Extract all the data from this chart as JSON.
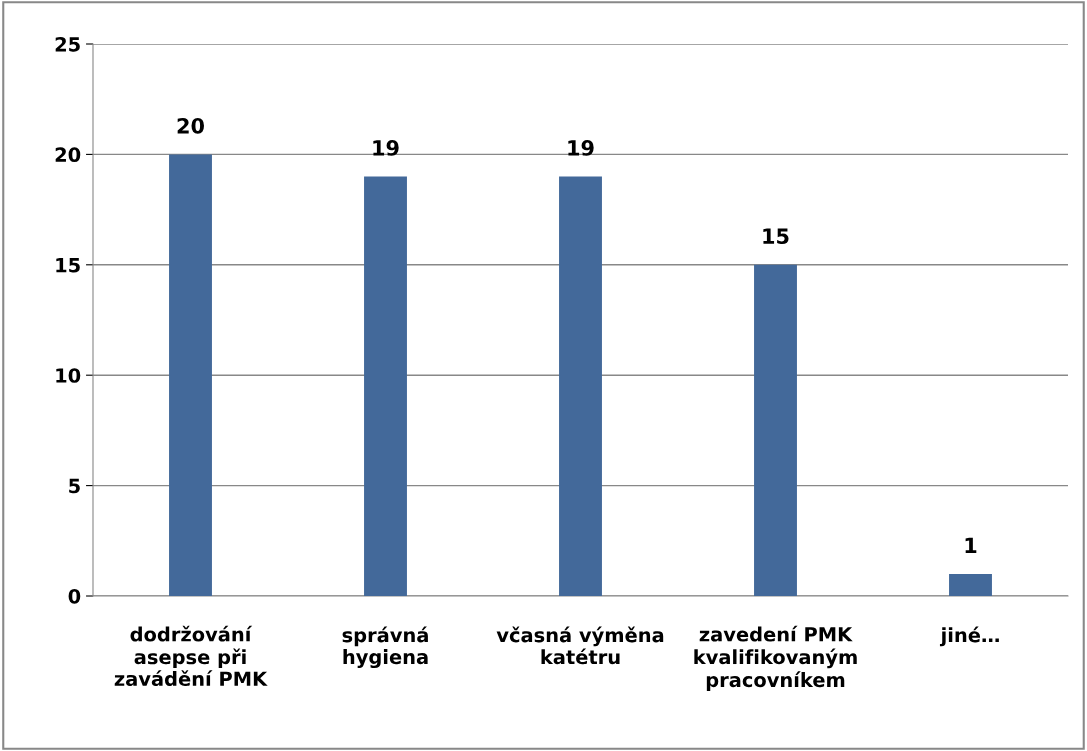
{
  "chart_data": {
    "type": "bar",
    "categories": [
      "dodržování\nasepse při\nzavádění PMK",
      "správná\nhygiena",
      "včasná výměna\nkatétru",
      "zavedení PMK\nkvalifikovaným\npracovníkem",
      "jiné…"
    ],
    "values": [
      20,
      19,
      19,
      15,
      1
    ],
    "color": "#43699a",
    "ylim": [
      0,
      25
    ],
    "yticks": [
      0,
      5,
      10,
      15,
      20,
      25
    ],
    "grid": "y",
    "data_labels": true,
    "legend": false
  }
}
